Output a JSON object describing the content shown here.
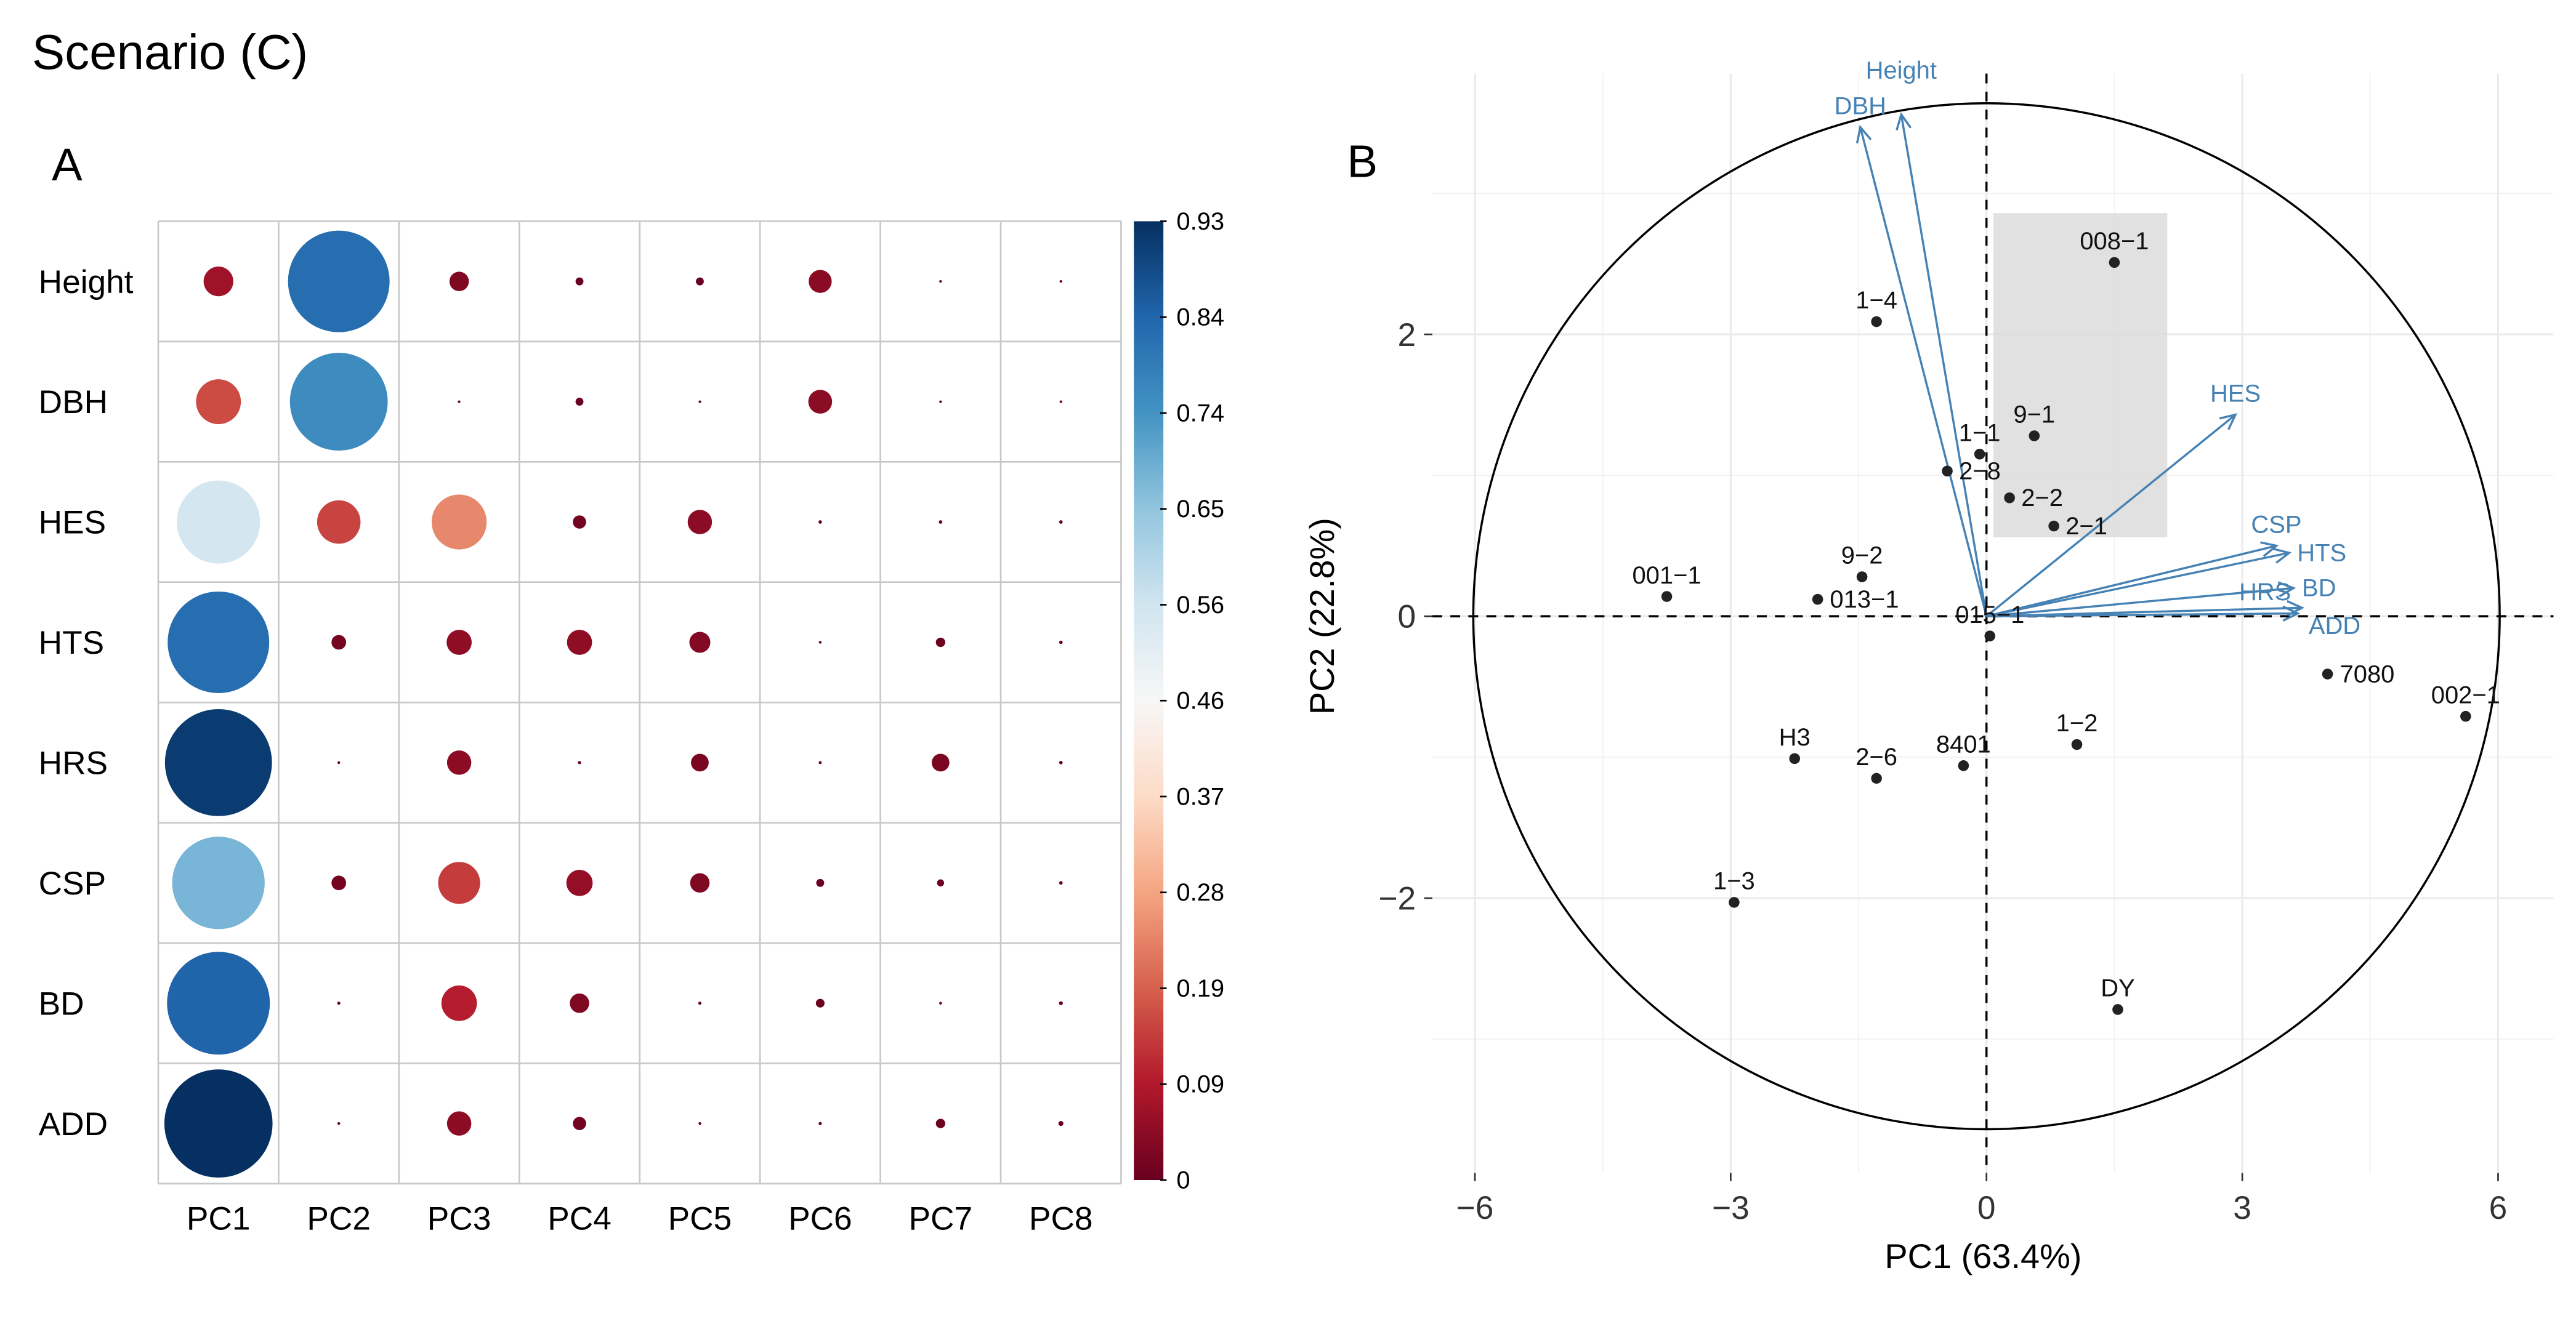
{
  "figure_title": "Scenario (C)",
  "chart_data": [
    {
      "panel": "A",
      "type": "heatmap",
      "style": "circle",
      "rows": [
        "Height",
        "DBH",
        "HES",
        "HTS",
        "HRS",
        "CSP",
        "BD",
        "ADD"
      ],
      "columns": [
        "PC1",
        "PC2",
        "PC3",
        "PC4",
        "PC5",
        "PC6",
        "PC7",
        "PC8"
      ],
      "values": [
        [
          0.07,
          0.82,
          0.03,
          0.005,
          0.005,
          0.042,
          0.0003,
          0.0003
        ],
        [
          0.16,
          0.76,
          0.0005,
          0.005,
          0.0005,
          0.045,
          0.0005,
          0.0005
        ],
        [
          0.55,
          0.15,
          0.24,
          0.014,
          0.047,
          0.001,
          0.001,
          0.001
        ],
        [
          0.82,
          0.017,
          0.05,
          0.05,
          0.035,
          0.0006,
          0.007,
          0.001
        ],
        [
          0.91,
          0.0006,
          0.047,
          0.0008,
          0.025,
          0.0007,
          0.025,
          0.001
        ],
        [
          0.68,
          0.017,
          0.14,
          0.055,
          0.03,
          0.005,
          0.004,
          0.001
        ],
        [
          0.84,
          0.0008,
          0.1,
          0.03,
          0.0008,
          0.006,
          0.0006,
          0.0012
        ],
        [
          0.93,
          0.0006,
          0.047,
          0.014,
          0.0006,
          0.0008,
          0.007,
          0.002
        ]
      ],
      "colorbar": {
        "min": 0,
        "max": 0.93,
        "ticks": [
          "0.93",
          "0.84",
          "0.74",
          "0.65",
          "0.56",
          "0.46",
          "0.37",
          "0.28",
          "0.19",
          "0.09",
          "0"
        ],
        "low_color": "#67001F",
        "mid_color": "#F7F7F7",
        "high_color": "#053061"
      }
    },
    {
      "panel": "B",
      "type": "scatter",
      "xlabel": "PC1 (63.4%)",
      "ylabel": "PC2 (22.8%)",
      "xlim": [
        -6.5,
        6.65
      ],
      "ylim": [
        -3.95,
        3.85
      ],
      "xticks": [
        "-6",
        "-3",
        "0",
        "3",
        "6"
      ],
      "yticks": [
        "-2",
        "0",
        "2"
      ],
      "grid": true,
      "points": [
        {
          "label": "008−1",
          "x": 1.5,
          "y": 2.51
        },
        {
          "label": "1−4",
          "x": -1.29,
          "y": 2.09
        },
        {
          "label": "9−1",
          "x": 0.56,
          "y": 1.28
        },
        {
          "label": "1−1",
          "x": -0.08,
          "y": 1.15
        },
        {
          "label": "2−8",
          "x": -0.46,
          "y": 1.03
        },
        {
          "label": "2−2",
          "x": 0.27,
          "y": 0.84
        },
        {
          "label": "2−1",
          "x": 0.79,
          "y": 0.64
        },
        {
          "label": "9−2",
          "x": -1.46,
          "y": 0.28
        },
        {
          "label": "013−1",
          "x": -1.98,
          "y": 0.12
        },
        {
          "label": "001−1",
          "x": -3.75,
          "y": 0.14
        },
        {
          "label": "015−1",
          "x": 0.04,
          "y": -0.14
        },
        {
          "label": "7080",
          "x": 4.0,
          "y": -0.41
        },
        {
          "label": "002−1",
          "x": 5.62,
          "y": -0.71
        },
        {
          "label": "1−2",
          "x": 1.06,
          "y": -0.91
        },
        {
          "label": "H3",
          "x": -2.25,
          "y": -1.01
        },
        {
          "label": "2−6",
          "x": -1.29,
          "y": -1.15
        },
        {
          "label": "8401",
          "x": -0.27,
          "y": -1.06
        },
        {
          "label": "1−3",
          "x": -2.96,
          "y": -2.03
        },
        {
          "label": "DY",
          "x": 1.54,
          "y": -2.79
        }
      ],
      "loadings": [
        {
          "label": "DBH",
          "x": -1.48,
          "y": 3.47
        },
        {
          "label": "Height",
          "x": -1.0,
          "y": 3.56
        },
        {
          "label": "HES",
          "x": 2.92,
          "y": 1.43
        },
        {
          "label": "CSP",
          "x": 3.4,
          "y": 0.5
        },
        {
          "label": "HTS",
          "x": 3.55,
          "y": 0.45
        },
        {
          "label": "BD",
          "x": 3.6,
          "y": 0.2
        },
        {
          "label": "ADD",
          "x": 3.7,
          "y": 0.06
        },
        {
          "label": "HRS",
          "x": 3.65,
          "y": 0.02
        }
      ],
      "highlight_region": {
        "x": [
          0.08,
          2.12
        ],
        "y": [
          0.56,
          2.86
        ]
      },
      "arrow_color": "#4682B4"
    }
  ]
}
